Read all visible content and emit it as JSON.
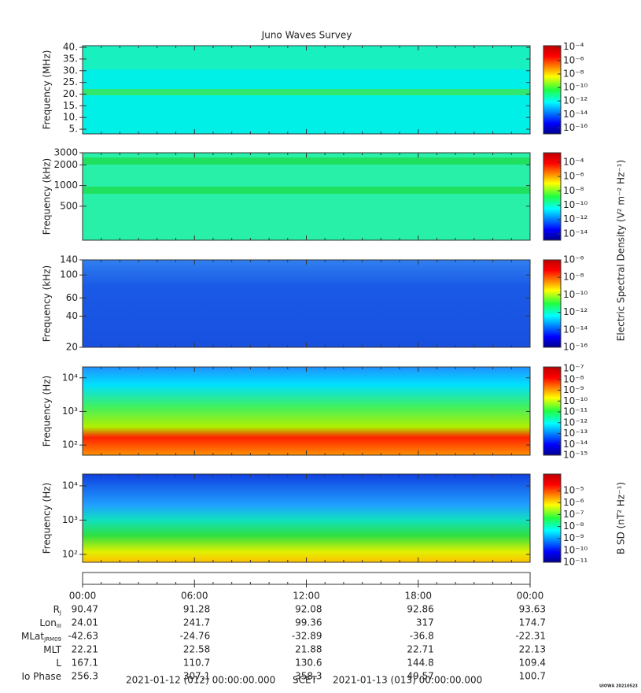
{
  "title": "Juno Waves Survey",
  "chart_data": [
    {
      "type": "spectrogram",
      "ylabel": "Frequency (MHz)",
      "ylim": [
        3,
        40.7
      ],
      "yticks": [
        {
          "value": 5,
          "label": "5."
        },
        {
          "value": 10,
          "label": "10."
        },
        {
          "value": 15,
          "label": "15."
        },
        {
          "value": 20,
          "label": "20."
        },
        {
          "value": 25,
          "label": "25."
        },
        {
          "value": 30,
          "label": "30."
        },
        {
          "value": 35,
          "label": "35."
        },
        {
          "value": 40,
          "label": "40."
        }
      ],
      "zscale": "log",
      "zlim": [
        1.3e-17,
        0.00016
      ],
      "zticks": [
        {
          "value": 0.0001,
          "label": "10⁻⁴"
        },
        {
          "value": 1e-06,
          "label": "10⁻⁶"
        },
        {
          "value": 1e-08,
          "label": "10⁻⁸"
        },
        {
          "value": 1e-10,
          "label": "10⁻¹⁰"
        },
        {
          "value": 1e-12,
          "label": "10⁻¹²"
        },
        {
          "value": 1e-14,
          "label": "10⁻¹⁴"
        },
        {
          "value": 1e-16,
          "label": "10⁻¹⁶"
        }
      ]
    },
    {
      "type": "spectrogram",
      "ylabel": "Frequency (kHz)",
      "yscale": "log",
      "ylim": [
        160,
        3000
      ],
      "yticks": [
        500,
        1000,
        2000,
        3000
      ],
      "zscale": "log",
      "zlim": [
        1.3e-15,
        0.002
      ],
      "zticks": [
        {
          "value": 0.0001,
          "label": "10⁻⁴"
        },
        {
          "value": 1e-06,
          "label": "10⁻⁶"
        },
        {
          "value": 1e-08,
          "label": "10⁻⁸"
        },
        {
          "value": 1e-10,
          "label": "10⁻¹⁰"
        },
        {
          "value": 1e-12,
          "label": "10⁻¹²"
        },
        {
          "value": 1e-14,
          "label": "10⁻¹⁴"
        }
      ],
      "zlabel": "Electric Spectral Density (V² m⁻² Hz⁻¹)"
    },
    {
      "type": "spectrogram",
      "ylabel": "Frequency (kHz)",
      "yscale": "log",
      "ylim": [
        20,
        140
      ],
      "yticks": [
        20,
        40,
        60,
        100,
        140
      ],
      "zscale": "log",
      "zlim": [
        1e-16,
        1e-06
      ],
      "zticks": [
        {
          "value": 1e-06,
          "label": "10⁻⁶"
        },
        {
          "value": 1e-08,
          "label": "10⁻⁸"
        },
        {
          "value": 1e-10,
          "label": "10⁻¹⁰"
        },
        {
          "value": 1e-12,
          "label": "10⁻¹²"
        },
        {
          "value": 1e-14,
          "label": "10⁻¹⁴"
        },
        {
          "value": 1e-16,
          "label": "10⁻¹⁶"
        }
      ]
    },
    {
      "type": "spectrogram",
      "ylabel": "Frequency (Hz)",
      "yscale": "log",
      "ylim": [
        50,
        21000
      ],
      "yticks": [
        {
          "value": 100,
          "label": "10²"
        },
        {
          "value": 1000,
          "label": "10³"
        },
        {
          "value": 10000,
          "label": "10⁴"
        }
      ],
      "zscale": "log",
      "zlim": [
        1e-15,
        1.4e-07
      ],
      "zticks": [
        {
          "value": 1e-07,
          "label": "10⁻⁷"
        },
        {
          "value": 1e-08,
          "label": "10⁻⁸"
        },
        {
          "value": 1e-09,
          "label": "10⁻⁹"
        },
        {
          "value": 1e-10,
          "label": "10⁻¹⁰"
        },
        {
          "value": 1e-11,
          "label": "10⁻¹¹"
        },
        {
          "value": 1e-12,
          "label": "10⁻¹²"
        },
        {
          "value": 1e-13,
          "label": "10⁻¹³"
        },
        {
          "value": 1e-14,
          "label": "10⁻¹⁴"
        },
        {
          "value": 1e-15,
          "label": "10⁻¹⁵"
        }
      ]
    },
    {
      "type": "spectrogram",
      "ylabel": "Frequency (Hz)",
      "yscale": "log",
      "ylim": [
        59,
        22000
      ],
      "yticks": [
        {
          "value": 100,
          "label": "10²"
        },
        {
          "value": 1000,
          "label": "10³"
        },
        {
          "value": 10000,
          "label": "10⁴"
        }
      ],
      "zscale": "log",
      "zlim": [
        1e-11,
        0.00025
      ],
      "zticks": [
        {
          "value": 1e-05,
          "label": "10⁻⁵"
        },
        {
          "value": 1e-06,
          "label": "10⁻⁶"
        },
        {
          "value": 1e-07,
          "label": "10⁻⁷"
        },
        {
          "value": 1e-08,
          "label": "10⁻⁸"
        },
        {
          "value": 1e-09,
          "label": "10⁻⁹"
        },
        {
          "value": 1e-10,
          "label": "10⁻¹⁰"
        },
        {
          "value": 1e-11,
          "label": "10⁻¹¹"
        }
      ],
      "zlabel": "B SD (nT² Hz⁻¹)"
    }
  ],
  "time_axis": {
    "xlim": [
      0,
      24
    ],
    "xticks": [
      {
        "value": 0,
        "label": "00:00"
      },
      {
        "value": 6,
        "label": "06:00"
      },
      {
        "value": 12,
        "label": "12:00"
      },
      {
        "value": 18,
        "label": "18:00"
      },
      {
        "value": 24,
        "label": "00:00"
      }
    ]
  },
  "ephemeris": [
    {
      "label": "R",
      "sub": "J",
      "values": [
        90.47,
        91.28,
        92.08,
        92.86,
        93.63
      ]
    },
    {
      "label": "Lon",
      "sub": "III",
      "values": [
        24.01,
        241.7,
        99.36,
        317.0,
        174.7
      ]
    },
    {
      "label": "MLat",
      "sub": "JRM09",
      "values": [
        -42.63,
        -24.76,
        -32.89,
        -36.8,
        -22.31
      ]
    },
    {
      "label": "MLT",
      "values": [
        22.21,
        22.58,
        21.88,
        22.71,
        22.13
      ]
    },
    {
      "label": "L",
      "values": [
        167.1,
        110.7,
        130.6,
        144.8,
        109.4
      ]
    },
    {
      "label": "Io Phase",
      "values": [
        256.3,
        307.1,
        358.3,
        49.57,
        100.7
      ]
    }
  ],
  "footer": {
    "start": "2021-01-12 (012) 00:00:00.000",
    "center": "SCET",
    "end": "2021-01-13 (013) 00:00:00.000",
    "stamp": "UIOWA 20210523"
  }
}
